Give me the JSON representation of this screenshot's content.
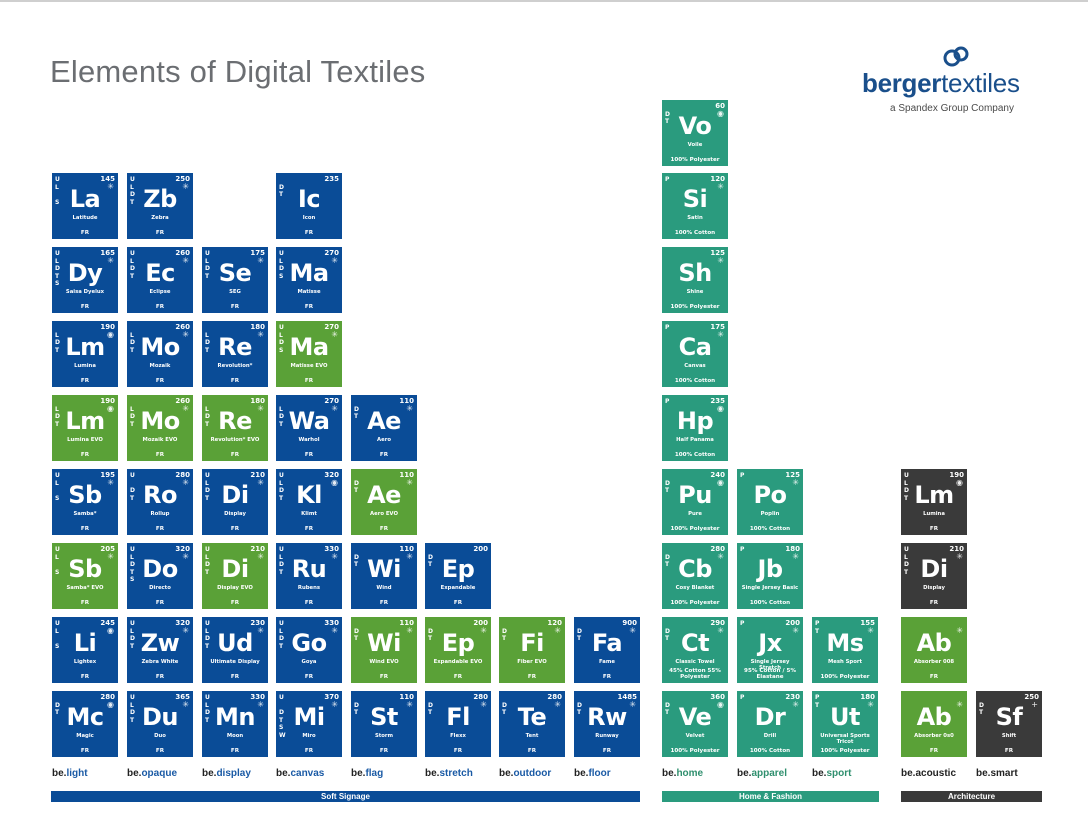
{
  "title": "Elements of Digital Textiles",
  "logo": {
    "brand_bold": "berger",
    "brand_light": "textiles",
    "tagline": "a Spandex Group Company",
    "icon": "berger-logo-icon"
  },
  "colors": {
    "blue": "#0a4c97",
    "green": "#5aa137",
    "teal": "#2a9b7e",
    "dark": "#3a3a3a"
  },
  "tiles": [
    {
      "sym": "La",
      "name": "Latitude",
      "num": "145",
      "props": "U\nL\n\nS",
      "foot": "FR",
      "color": "blue",
      "mark": "*"
    },
    {
      "sym": "Zb",
      "name": "Zebra",
      "num": "250",
      "props": "U\nL\nD\nT",
      "foot": "FR",
      "color": "blue",
      "mark": "*"
    },
    {
      "sym": "Ic",
      "name": "Icon",
      "num": "235",
      "props": "\nD\nT",
      "foot": "FR",
      "color": "blue",
      "mark": ""
    },
    {
      "sym": "Dy",
      "name": "Saisa Dyelux",
      "num": "165",
      "props": "U\nL\nD\nT\nS",
      "foot": "FR",
      "color": "blue",
      "mark": "*"
    },
    {
      "sym": "Ec",
      "name": "Eclipse",
      "num": "260",
      "props": "U\nL\nD\nT",
      "foot": "FR",
      "color": "blue",
      "mark": "*"
    },
    {
      "sym": "Se",
      "name": "SEG",
      "num": "175",
      "props": "U\nL\nD\nT",
      "foot": "FR",
      "color": "blue",
      "mark": "*"
    },
    {
      "sym": "Ma",
      "name": "Matisse",
      "num": "270",
      "props": "U\nL\nD\nS",
      "foot": "FR",
      "color": "blue",
      "mark": "*"
    },
    {
      "sym": "Lm",
      "name": "Lumina",
      "num": "190",
      "props": "\nL\nD\nT",
      "foot": "FR",
      "color": "blue",
      "mark": "o"
    },
    {
      "sym": "Mo",
      "name": "Mozaik",
      "num": "260",
      "props": "\nL\nD\nT",
      "foot": "FR",
      "color": "blue",
      "mark": "*"
    },
    {
      "sym": "Re",
      "name": "Revolution*",
      "num": "180",
      "props": "\nL\nD\nT",
      "foot": "FR",
      "color": "blue",
      "mark": "*"
    },
    {
      "sym": "Ma",
      "name": "Matisse EVO",
      "num": "270",
      "props": "U\nL\nD\nS",
      "foot": "FR",
      "color": "green",
      "mark": "*"
    },
    {
      "sym": "Lm",
      "name": "Lumina EVO",
      "num": "190",
      "props": "\nL\nD\nT",
      "foot": "FR",
      "color": "green",
      "mark": "o"
    },
    {
      "sym": "Mo",
      "name": "Mozaik EVO",
      "num": "260",
      "props": "\nL\nD\nT",
      "foot": "FR",
      "color": "green",
      "mark": "*"
    },
    {
      "sym": "Re",
      "name": "Revolution* EVO",
      "num": "180",
      "props": "\nL\nD\nT",
      "foot": "FR",
      "color": "green",
      "mark": "*"
    },
    {
      "sym": "Wa",
      "name": "Warhol",
      "num": "270",
      "props": "\nL\nD\nT",
      "foot": "FR",
      "color": "blue",
      "mark": "*"
    },
    {
      "sym": "Ae",
      "name": "Aero",
      "num": "110",
      "props": "\nD\nT",
      "foot": "FR",
      "color": "blue",
      "mark": "*"
    },
    {
      "sym": "Sb",
      "name": "Samba*",
      "num": "195",
      "props": "U\nL\n\nS",
      "foot": "FR",
      "color": "blue",
      "mark": "*"
    },
    {
      "sym": "Ro",
      "name": "Rollup",
      "num": "280",
      "props": "U\n\nD\nT",
      "foot": "FR",
      "color": "blue",
      "mark": "*"
    },
    {
      "sym": "Di",
      "name": "Display",
      "num": "210",
      "props": "U\nL\nD\nT",
      "foot": "FR",
      "color": "blue",
      "mark": "*"
    },
    {
      "sym": "Kl",
      "name": "Klimt",
      "num": "320",
      "props": "U\nL\nD\nT",
      "foot": "FR",
      "color": "blue",
      "mark": "o"
    },
    {
      "sym": "Ae",
      "name": "Aero EVO",
      "num": "110",
      "props": "\nD\nT",
      "foot": "FR",
      "color": "green",
      "mark": "*"
    },
    {
      "sym": "Sb",
      "name": "Samba* EVO",
      "num": "205",
      "props": "U\nL\n\nS",
      "foot": "FR",
      "color": "green",
      "mark": "*"
    },
    {
      "sym": "Do",
      "name": "Directo",
      "num": "320",
      "props": "U\nL\nD\nT\nS",
      "foot": "FR",
      "color": "blue",
      "mark": "*"
    },
    {
      "sym": "Di",
      "name": "Display EVO",
      "num": "210",
      "props": "U\nL\nD\nT",
      "foot": "FR",
      "color": "green",
      "mark": "*"
    },
    {
      "sym": "Ru",
      "name": "Rubens",
      "num": "330",
      "props": "U\nL\nD\nT",
      "foot": "FR",
      "color": "blue",
      "mark": "*"
    },
    {
      "sym": "Wi",
      "name": "Wind",
      "num": "110",
      "props": "\nD\nT",
      "foot": "FR",
      "color": "blue",
      "mark": "*"
    },
    {
      "sym": "Ep",
      "name": "Expandable",
      "num": "200",
      "props": "\nD\nT",
      "foot": "FR",
      "color": "blue",
      "mark": ""
    },
    {
      "sym": "Li",
      "name": "Lightex",
      "num": "245",
      "props": "U\nL\n\nS",
      "foot": "FR",
      "color": "blue",
      "mark": "o"
    },
    {
      "sym": "Zw",
      "name": "Zebra White",
      "num": "320",
      "props": "U\nL\nD\nT",
      "foot": "FR",
      "color": "blue",
      "mark": "*"
    },
    {
      "sym": "Ud",
      "name": "Ultimate Display",
      "num": "230",
      "props": "U\nL\nD\nT",
      "foot": "FR",
      "color": "blue",
      "mark": "*"
    },
    {
      "sym": "Go",
      "name": "Goya",
      "num": "330",
      "props": "U\nL\nD\nT",
      "foot": "FR",
      "color": "blue",
      "mark": "*"
    },
    {
      "sym": "Wi",
      "name": "Wind EVO",
      "num": "110",
      "props": "\nD\nT",
      "foot": "FR",
      "color": "green",
      "mark": "*"
    },
    {
      "sym": "Ep",
      "name": "Expandable EVO",
      "num": "200",
      "props": "\nD\nT",
      "foot": "FR",
      "color": "green",
      "mark": "*"
    },
    {
      "sym": "Fi",
      "name": "Fiber EVO",
      "num": "120",
      "props": "\nD\nT",
      "foot": "FR",
      "color": "green",
      "mark": "*"
    },
    {
      "sym": "Fa",
      "name": "Fame",
      "num": "900",
      "props": "\nD\nT",
      "foot": "FR",
      "color": "blue",
      "mark": "*"
    },
    {
      "sym": "Mc",
      "name": "Magic",
      "num": "280",
      "props": "\nD\nT",
      "foot": "FR",
      "color": "blue",
      "mark": "o"
    },
    {
      "sym": "Du",
      "name": "Duo",
      "num": "365",
      "props": "U\nL\nD\nT",
      "foot": "FR",
      "color": "blue",
      "mark": "*"
    },
    {
      "sym": "Mn",
      "name": "Moon",
      "num": "330",
      "props": "U\nL\nD\nT",
      "foot": "FR",
      "color": "blue",
      "mark": "*"
    },
    {
      "sym": "Mi",
      "name": "Miro",
      "num": "370",
      "props": "U\n\nD\nT\nS\nW",
      "foot": "FR",
      "color": "blue",
      "mark": "*"
    },
    {
      "sym": "St",
      "name": "Storm",
      "num": "110",
      "props": "\nD\nT",
      "foot": "FR",
      "color": "blue",
      "mark": "*"
    },
    {
      "sym": "Fl",
      "name": "Flexx",
      "num": "280",
      "props": "\nD\nT",
      "foot": "FR",
      "color": "blue",
      "mark": "*"
    },
    {
      "sym": "Te",
      "name": "Tent",
      "num": "280",
      "props": "\nD\nT",
      "foot": "FR",
      "color": "blue",
      "mark": "*"
    },
    {
      "sym": "Rw",
      "name": "Runway",
      "num": "1485",
      "props": "\nD\nT",
      "foot": "FR",
      "color": "blue",
      "mark": "*"
    },
    {
      "sym": "Vo",
      "name": "Voile",
      "num": "60",
      "props": "\nD\nT",
      "foot": "100% Polyester",
      "color": "teal",
      "mark": "o"
    },
    {
      "sym": "Si",
      "name": "Satin",
      "num": "120",
      "props": "P",
      "foot": "100% Cotton",
      "color": "teal",
      "mark": "*"
    },
    {
      "sym": "Sh",
      "name": "Shine",
      "num": "125",
      "props": "",
      "foot": "100% Polyester",
      "color": "teal",
      "mark": "*"
    },
    {
      "sym": "Ca",
      "name": "Canvas",
      "num": "175",
      "props": "P",
      "foot": "100% Cotton",
      "color": "teal",
      "mark": "*"
    },
    {
      "sym": "Hp",
      "name": "Half Panama",
      "num": "235",
      "props": "P",
      "foot": "100% Cotton",
      "color": "teal",
      "mark": "o"
    },
    {
      "sym": "Pu",
      "name": "Pure",
      "num": "240",
      "props": "\nD\nT",
      "foot": "100% Polyester",
      "color": "teal",
      "mark": "o"
    },
    {
      "sym": "Po",
      "name": "Poplin",
      "num": "125",
      "props": "P",
      "foot": "100% Cotton",
      "color": "teal",
      "mark": "*"
    },
    {
      "sym": "Cb",
      "name": "Cosy Blanket",
      "num": "280",
      "props": "\nD\nT",
      "foot": "100% Polyester",
      "color": "teal",
      "mark": "*"
    },
    {
      "sym": "Jb",
      "name": "Single Jersey Basic",
      "num": "180",
      "props": "P",
      "foot": "100% Cotton",
      "color": "teal",
      "mark": "*"
    },
    {
      "sym": "Ct",
      "name": "Classic Towel",
      "num": "290",
      "props": "\nD\nT",
      "foot": "45% Cotton 55% Polyester",
      "color": "teal",
      "mark": "*"
    },
    {
      "sym": "Jx",
      "name": "Single Jersey Stretch",
      "num": "200",
      "props": "P",
      "foot": "95% Cotton / 5% Elastane",
      "color": "teal",
      "mark": "*"
    },
    {
      "sym": "Ms",
      "name": "Mesh Sport",
      "num": "155",
      "props": "P\nT",
      "foot": "100% Polyester",
      "color": "teal",
      "mark": "*"
    },
    {
      "sym": "Ve",
      "name": "Velvet",
      "num": "360",
      "props": "\nD\nT",
      "foot": "100% Polyester",
      "color": "teal",
      "mark": "o"
    },
    {
      "sym": "Dr",
      "name": "Drill",
      "num": "230",
      "props": "P",
      "foot": "100% Cotton",
      "color": "teal",
      "mark": "*"
    },
    {
      "sym": "Ut",
      "name": "Universal Sports Tricot",
      "num": "180",
      "props": "P\nT",
      "foot": "100% Polyester",
      "color": "teal",
      "mark": "*"
    },
    {
      "sym": "Lm",
      "name": "Lumina",
      "num": "190",
      "props": "U\nL\nD\nT",
      "foot": "FR",
      "color": "dark",
      "mark": "o"
    },
    {
      "sym": "Di",
      "name": "Display",
      "num": "210",
      "props": "U\nL\nD\nT",
      "foot": "FR",
      "color": "dark",
      "mark": "*"
    },
    {
      "sym": "Ab",
      "name": "Absorber 008",
      "num": "",
      "props": "",
      "foot": "FR",
      "color": "green",
      "mark": "*"
    },
    {
      "sym": "Ab",
      "name": "Absorber 0s0",
      "num": "",
      "props": "",
      "foot": "FR",
      "color": "green",
      "mark": "*"
    },
    {
      "sym": "Sf",
      "name": "Shift",
      "num": "250",
      "props": "\nD\nT",
      "foot": "FR",
      "color": "dark",
      "mark": "+"
    }
  ],
  "categories": [
    {
      "pre": "be.",
      "suf": "light",
      "group": "blue"
    },
    {
      "pre": "be.",
      "suf": "opaque",
      "group": "blue"
    },
    {
      "pre": "be.",
      "suf": "display",
      "group": "blue"
    },
    {
      "pre": "be.",
      "suf": "canvas",
      "group": "blue"
    },
    {
      "pre": "be.",
      "suf": "flag",
      "group": "blue"
    },
    {
      "pre": "be.",
      "suf": "stretch",
      "group": "blue"
    },
    {
      "pre": "be.",
      "suf": "outdoor",
      "group": "blue"
    },
    {
      "pre": "be.",
      "suf": "floor",
      "group": "blue"
    },
    {
      "pre": "be.",
      "suf": "home",
      "group": "green"
    },
    {
      "pre": "be.",
      "suf": "apparel",
      "group": "green"
    },
    {
      "pre": "be.",
      "suf": "sport",
      "group": "green"
    },
    {
      "pre": "be.",
      "suf": "acoustic",
      "group": "gray"
    },
    {
      "pre": "be.",
      "suf": "smart",
      "group": "gray"
    }
  ],
  "bars": [
    {
      "label": "Soft Signage",
      "color": "#0a4c97"
    },
    {
      "label": "Home & Fashion",
      "color": "#2a9b7e"
    },
    {
      "label": "Architecture",
      "color": "#3a3a3a"
    }
  ]
}
